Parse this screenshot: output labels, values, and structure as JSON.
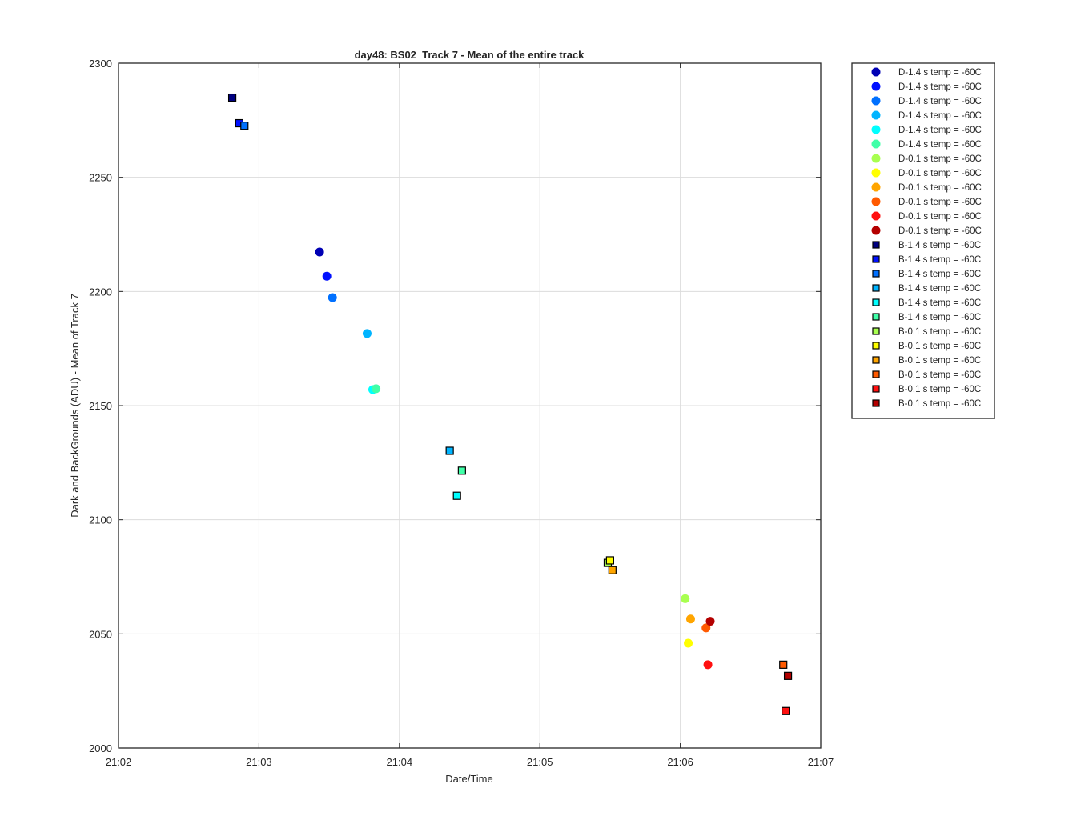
{
  "chart_data": {
    "type": "scatter",
    "title": "day48: BS02  Track 7 - Mean of the entire track",
    "xlabel": "Date/Time",
    "ylabel": "Dark and BackGrounds (ADU) - Mean of Track 7",
    "x_axis": {
      "kind": "time",
      "range": [
        "21:02",
        "21:07"
      ],
      "ticks": [
        "21:02",
        "21:03",
        "21:04",
        "21:05",
        "21:06",
        "21:07"
      ]
    },
    "y_axis": {
      "range": [
        2000,
        2300
      ],
      "ticks": [
        "2000",
        "2050",
        "2100",
        "2150",
        "2200",
        "2250",
        "2300"
      ]
    },
    "grid": true,
    "legend_position": "outside-top-right",
    "series": [
      {
        "name": "D-1.4 s temp = -60C",
        "marker": "circle",
        "color": "#0000b4",
        "points": [
          {
            "x": "21:03:25.9",
            "y": 2217.3
          }
        ]
      },
      {
        "name": "D-1.4 s temp = -60C",
        "marker": "circle",
        "color": "#0010ff",
        "points": [
          {
            "x": "21:03:29.0",
            "y": 2206.7
          }
        ]
      },
      {
        "name": "D-1.4 s temp = -60C",
        "marker": "circle",
        "color": "#0070ff",
        "points": [
          {
            "x": "21:03:31.4",
            "y": 2197.3
          }
        ]
      },
      {
        "name": "D-1.4 s temp = -60C",
        "marker": "circle",
        "color": "#00b4ff",
        "points": [
          {
            "x": "21:03:46.2",
            "y": 2181.6
          }
        ]
      },
      {
        "name": "D-1.4 s temp = -60C",
        "marker": "circle",
        "color": "#00ffff",
        "points": [
          {
            "x": "21:03:48.6",
            "y": 2157.0
          }
        ]
      },
      {
        "name": "D-1.4 s temp = -60C",
        "marker": "circle",
        "color": "#40ffa8",
        "points": [
          {
            "x": "21:03:50.0",
            "y": 2157.4
          }
        ]
      },
      {
        "name": "D-0.1 s temp = -60C",
        "marker": "circle",
        "color": "#a8ff50",
        "points": [
          {
            "x": "21:06:02.1",
            "y": 2065.4
          }
        ]
      },
      {
        "name": "D-0.1 s temp = -60C",
        "marker": "circle",
        "color": "#ffff00",
        "points": [
          {
            "x": "21:06:03.4",
            "y": 2045.9
          }
        ]
      },
      {
        "name": "D-0.1 s temp = -60C",
        "marker": "circle",
        "color": "#ffa500",
        "points": [
          {
            "x": "21:06:04.4",
            "y": 2056.5
          }
        ]
      },
      {
        "name": "D-0.1 s temp = -60C",
        "marker": "circle",
        "color": "#ff5a00",
        "points": [
          {
            "x": "21:06:11.0",
            "y": 2052.6
          }
        ]
      },
      {
        "name": "D-0.1 s temp = -60C",
        "marker": "circle",
        "color": "#ff1010",
        "points": [
          {
            "x": "21:06:11.8",
            "y": 2036.5
          }
        ]
      },
      {
        "name": "D-0.1 s temp = -60C",
        "marker": "circle",
        "color": "#b40000",
        "points": [
          {
            "x": "21:06:12.8",
            "y": 2055.5
          }
        ]
      },
      {
        "name": "B-1.4 s temp = -60C",
        "marker": "square",
        "color": "#000080",
        "points": [
          {
            "x": "21:02:48.6",
            "y": 2284.9
          }
        ]
      },
      {
        "name": "B-1.4 s temp = -60C",
        "marker": "square",
        "color": "#0010ff",
        "points": [
          {
            "x": "21:02:51.6",
            "y": 2273.7
          }
        ]
      },
      {
        "name": "B-1.4 s temp = -60C",
        "marker": "square",
        "color": "#0070ff",
        "points": [
          {
            "x": "21:02:53.8",
            "y": 2272.6
          }
        ]
      },
      {
        "name": "B-1.4 s temp = -60C",
        "marker": "square",
        "color": "#00b4ff",
        "points": [
          {
            "x": "21:04:21.5",
            "y": 2130.2
          }
        ]
      },
      {
        "name": "B-1.4 s temp = -60C",
        "marker": "square",
        "color": "#00ffff",
        "points": [
          {
            "x": "21:04:24.6",
            "y": 2110.5
          }
        ]
      },
      {
        "name": "B-1.4 s temp = -60C",
        "marker": "square",
        "color": "#40ffa8",
        "points": [
          {
            "x": "21:04:26.7",
            "y": 2121.5
          }
        ]
      },
      {
        "name": "B-0.1 s temp = -60C",
        "marker": "square",
        "color": "#a8ff50",
        "points": [
          {
            "x": "21:05:29.0",
            "y": 2081.1
          }
        ]
      },
      {
        "name": "B-0.1 s temp = -60C",
        "marker": "square",
        "color": "#ffff00",
        "points": [
          {
            "x": "21:05:30.0",
            "y": 2082.2
          }
        ]
      },
      {
        "name": "B-0.1 s temp = -60C",
        "marker": "square",
        "color": "#ffa500",
        "points": [
          {
            "x": "21:05:31.0",
            "y": 2077.9
          }
        ]
      },
      {
        "name": "B-0.1 s temp = -60C",
        "marker": "square",
        "color": "#ff5a00",
        "points": [
          {
            "x": "21:06:44.0",
            "y": 2036.5
          }
        ]
      },
      {
        "name": "B-0.1 s temp = -60C",
        "marker": "square",
        "color": "#ff1010",
        "points": [
          {
            "x": "21:06:45.0",
            "y": 2016.2
          }
        ]
      },
      {
        "name": "B-0.1 s temp = -60C",
        "marker": "square",
        "color": "#b40000",
        "points": [
          {
            "x": "21:06:46.0",
            "y": 2031.6
          }
        ]
      }
    ]
  }
}
